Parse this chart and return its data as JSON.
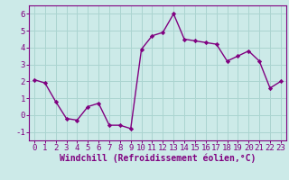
{
  "x": [
    0,
    1,
    2,
    3,
    4,
    5,
    6,
    7,
    8,
    9,
    10,
    11,
    12,
    13,
    14,
    15,
    16,
    17,
    18,
    19,
    20,
    21,
    22,
    23
  ],
  "y": [
    2.1,
    1.9,
    0.8,
    -0.2,
    -0.3,
    0.5,
    0.7,
    -0.6,
    -0.6,
    -0.8,
    3.9,
    4.7,
    4.9,
    6.0,
    4.5,
    4.4,
    4.3,
    4.2,
    3.2,
    3.5,
    3.8,
    3.2,
    1.6,
    2.0
  ],
  "line_color": "#800080",
  "marker": "D",
  "marker_size": 2.2,
  "bg_color": "#cceae8",
  "grid_color": "#aad4d0",
  "xlim": [
    -0.5,
    23.5
  ],
  "ylim": [
    -1.5,
    6.5
  ],
  "yticks": [
    -1,
    0,
    1,
    2,
    3,
    4,
    5,
    6
  ],
  "xticks": [
    0,
    1,
    2,
    3,
    4,
    5,
    6,
    7,
    8,
    9,
    10,
    11,
    12,
    13,
    14,
    15,
    16,
    17,
    18,
    19,
    20,
    21,
    22,
    23
  ],
  "xtick_labels": [
    "0",
    "1",
    "2",
    "3",
    "4",
    "5",
    "6",
    "7",
    "8",
    "9",
    "10",
    "11",
    "12",
    "13",
    "14",
    "15",
    "16",
    "17",
    "18",
    "19",
    "20",
    "21",
    "22",
    "23"
  ],
  "xlabel": "Windchill (Refroidissement éolien,°C)",
  "xlabel_fontsize": 7.0,
  "tick_fontsize": 6.5,
  "label_color": "#800080",
  "linewidth": 1.0
}
